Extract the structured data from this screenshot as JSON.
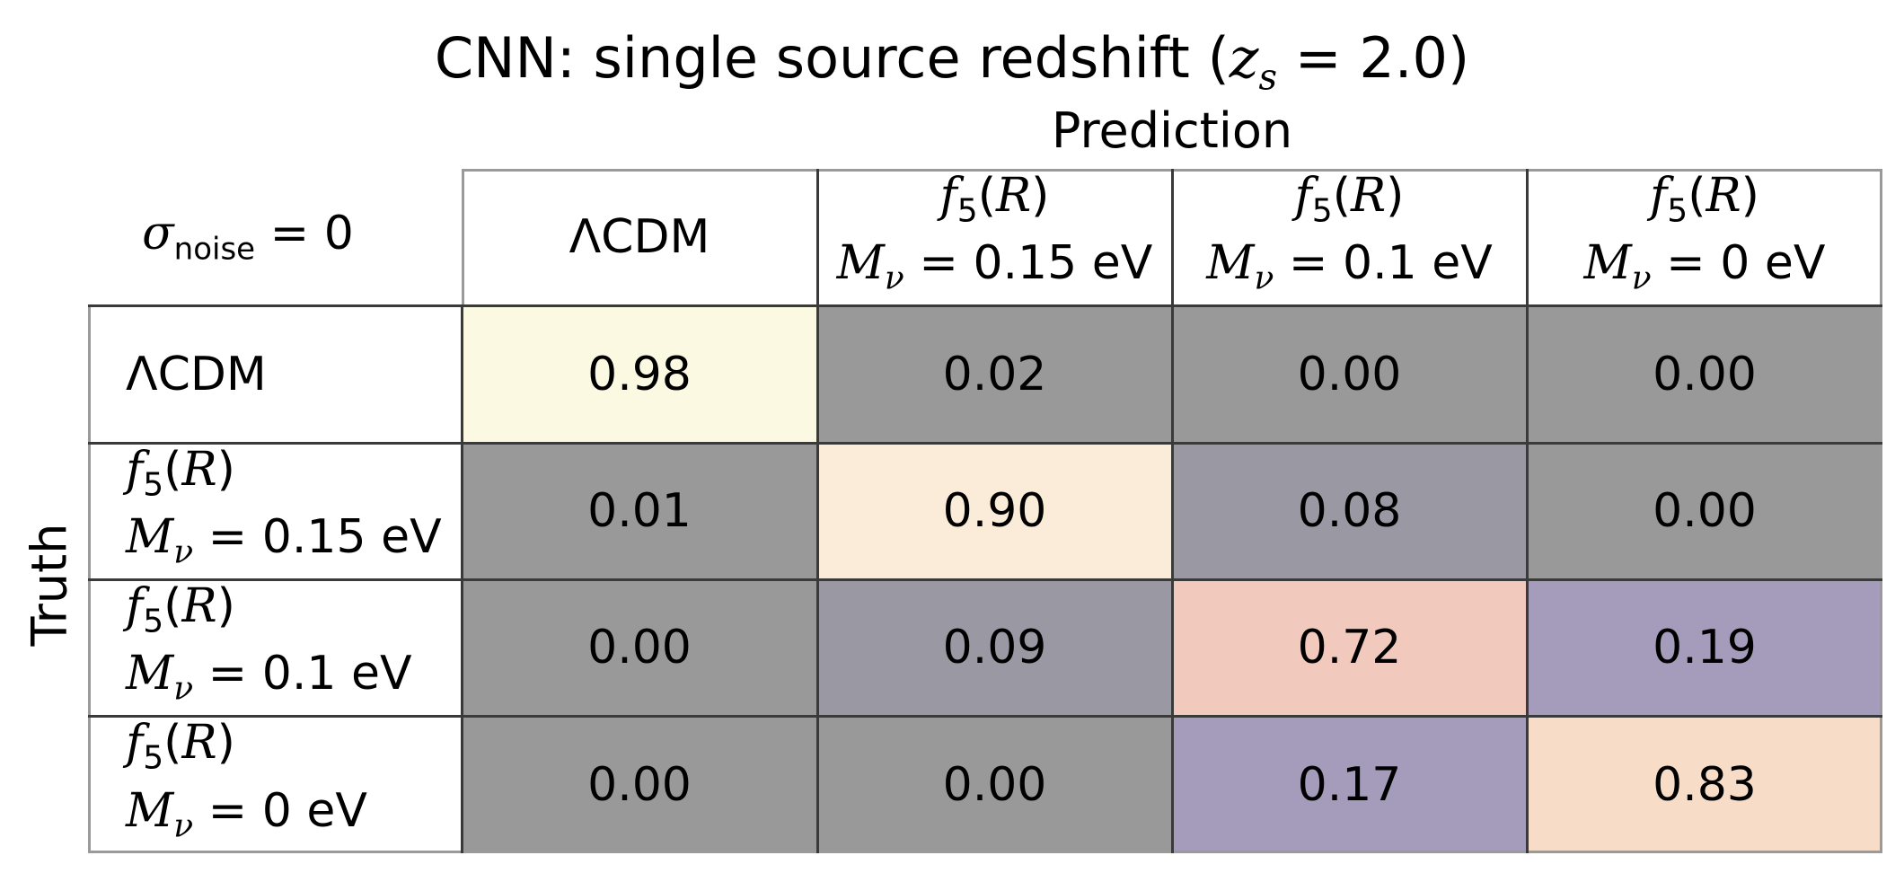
{
  "chart_data": {
    "type": "table",
    "title": "CNN: single source redshift (z_s = 2.0)",
    "column_axis_label": "Prediction",
    "row_axis_label": "Truth",
    "corner_label": "σ_noise = 0",
    "columns": [
      {
        "line1": "ΛCDM",
        "line2": ""
      },
      {
        "line1": "f5(R)",
        "line2": "Mν = 0.15 eV"
      },
      {
        "line1": "f5(R)",
        "line2": "Mν = 0.1 eV"
      },
      {
        "line1": "f5(R)",
        "line2": "Mν = 0 eV"
      }
    ],
    "rows": [
      {
        "line1": "ΛCDM",
        "line2": ""
      },
      {
        "line1": "f5(R)",
        "line2": "Mν = 0.15 eV"
      },
      {
        "line1": "f5(R)",
        "line2": "Mν = 0.1 eV"
      },
      {
        "line1": "f5(R)",
        "line2": "Mν = 0 eV"
      }
    ],
    "values": [
      [
        "0.98",
        "0.02",
        "0.00",
        "0.00"
      ],
      [
        "0.01",
        "0.90",
        "0.08",
        "0.00"
      ],
      [
        "0.00",
        "0.09",
        "0.72",
        "0.19"
      ],
      [
        "0.00",
        "0.00",
        "0.17",
        "0.83"
      ]
    ],
    "cell_colors": [
      [
        "#fcf9e3",
        "#999999",
        "#999999",
        "#999999"
      ],
      [
        "#999999",
        "#fbecd9",
        "#9a98a3",
        "#999999"
      ],
      [
        "#999999",
        "#9a98a3",
        "#f2c9bd",
        "#a59bba"
      ],
      [
        "#999999",
        "#999999",
        "#a59bba",
        "#f7dcc8"
      ]
    ]
  }
}
